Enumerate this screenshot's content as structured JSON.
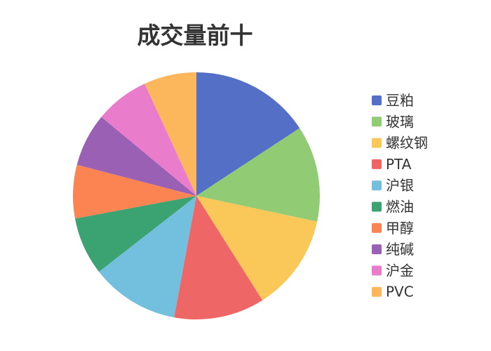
{
  "chart_data": {
    "type": "pie",
    "title": "成交量前十",
    "categories": [
      "豆粕",
      "玻璃",
      "螺纹钢",
      "PTA",
      "沪银",
      "燃油",
      "甲醇",
      "纯碱",
      "沪金",
      "PVC"
    ],
    "values": [
      15.8,
      12.6,
      12.7,
      11.9,
      11.6,
      7.6,
      7.0,
      7.0,
      7.1,
      6.9
    ],
    "colors": [
      "#5470c6",
      "#91cc75",
      "#fac858",
      "#ee6666",
      "#73c0de",
      "#3ba272",
      "#fc8452",
      "#9a60b4",
      "#ea7ccc",
      "#fcb65c"
    ],
    "legend_placement": "right",
    "start_angle": "top, clockwise"
  }
}
